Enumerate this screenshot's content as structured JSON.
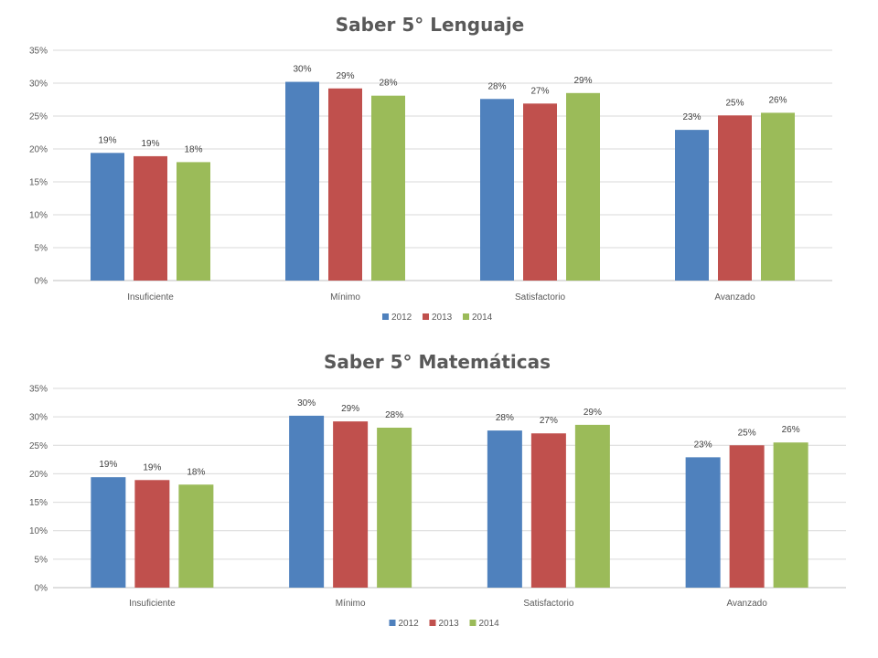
{
  "chart_data": [
    {
      "type": "bar",
      "title": "Saber 5° Lenguaje",
      "categories": [
        "Insuficiente",
        "Mínimo",
        "Satisfactorio",
        "Avanzado"
      ],
      "series": [
        {
          "name": "2012",
          "color": "#4f81bd",
          "values": [
            19.4,
            30.2,
            27.6,
            22.9
          ],
          "labels": [
            "19%",
            "30%",
            "28%",
            "23%"
          ]
        },
        {
          "name": "2013",
          "color": "#c0504d",
          "values": [
            18.9,
            29.2,
            26.9,
            25.1
          ],
          "labels": [
            "19%",
            "29%",
            "27%",
            "25%"
          ]
        },
        {
          "name": "2014",
          "color": "#9bbb59",
          "values": [
            18.0,
            28.1,
            28.5,
            25.5
          ],
          "labels": [
            "18%",
            "28%",
            "29%",
            "26%"
          ]
        }
      ],
      "y_ticks": [
        "0%",
        "5%",
        "10%",
        "15%",
        "20%",
        "25%",
        "30%",
        "35%"
      ],
      "ylim": [
        0,
        35
      ],
      "grid": true,
      "legend": "bottom"
    },
    {
      "type": "bar",
      "title": "Saber 5° Matemáticas",
      "categories": [
        "Insuficiente",
        "Mínimo",
        "Satisfactorio",
        "Avanzado"
      ],
      "series": [
        {
          "name": "2012",
          "color": "#4f81bd",
          "values": [
            19.4,
            30.2,
            27.6,
            22.9
          ],
          "labels": [
            "19%",
            "30%",
            "28%",
            "23%"
          ]
        },
        {
          "name": "2013",
          "color": "#c0504d",
          "values": [
            18.9,
            29.2,
            27.1,
            25.0
          ],
          "labels": [
            "19%",
            "29%",
            "27%",
            "25%"
          ]
        },
        {
          "name": "2014",
          "color": "#9bbb59",
          "values": [
            18.1,
            28.1,
            28.6,
            25.5
          ],
          "labels": [
            "18%",
            "28%",
            "29%",
            "26%"
          ]
        }
      ],
      "y_ticks": [
        "0%",
        "5%",
        "10%",
        "15%",
        "20%",
        "25%",
        "30%",
        "35%"
      ],
      "ylim": [
        0,
        35
      ],
      "grid": true,
      "legend": "bottom"
    }
  ]
}
